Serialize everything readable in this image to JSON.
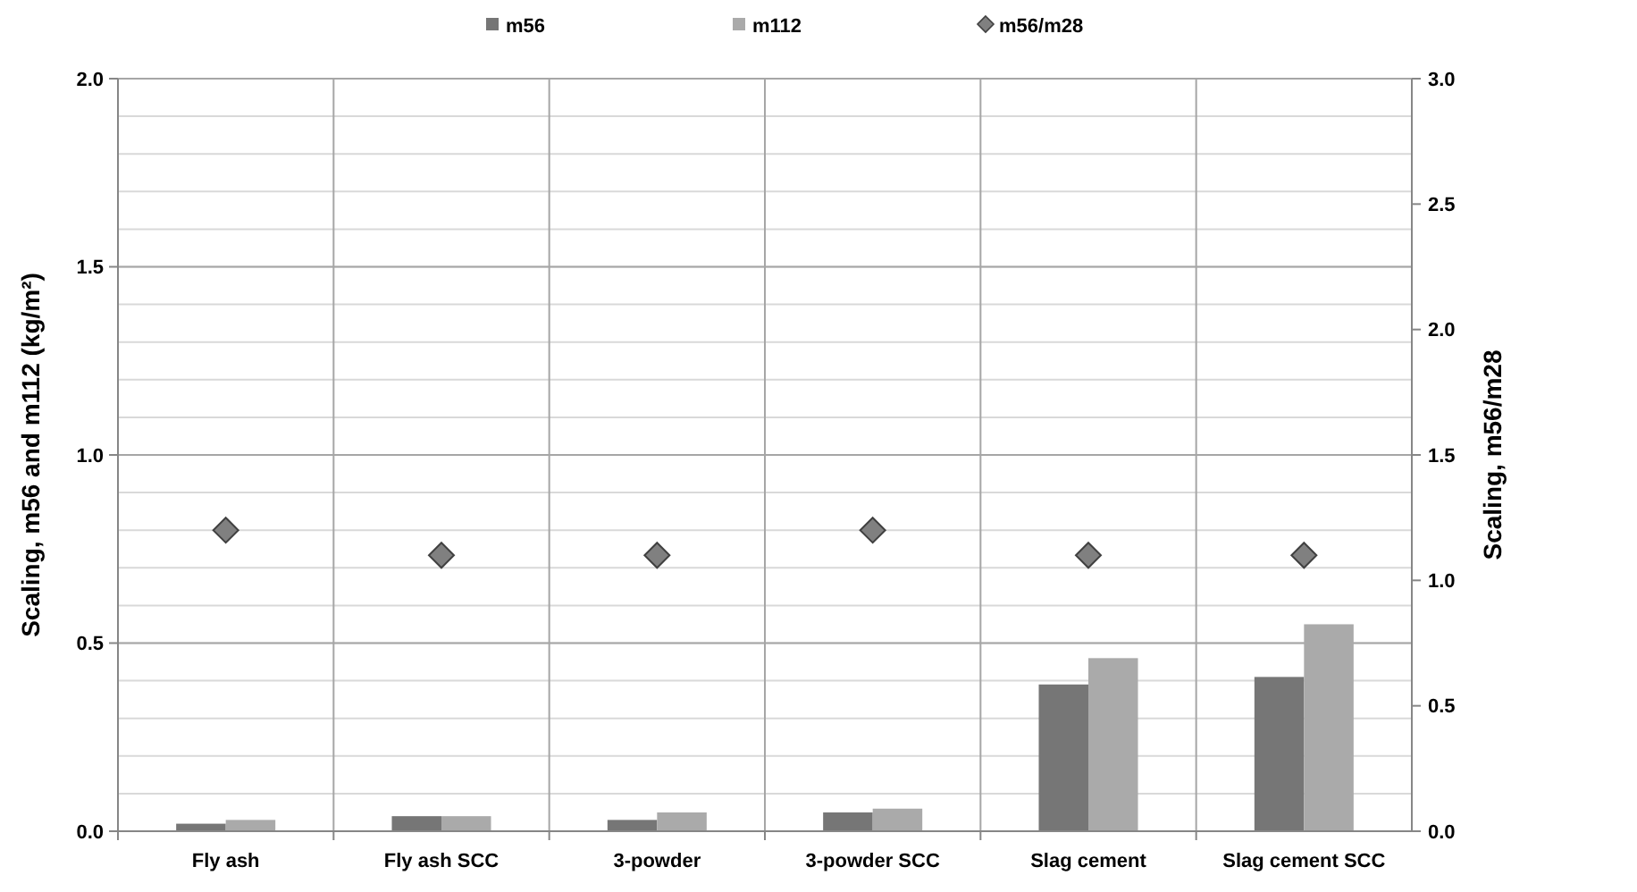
{
  "chart_data": {
    "type": "bar",
    "categories": [
      "Fly ash",
      "Fly ash SCC",
      "3-powder",
      "3-powder SCC",
      "Slag cement",
      "Slag cement SCC"
    ],
    "series": [
      {
        "name": "m56",
        "color": "#767676",
        "values": [
          0.02,
          0.04,
          0.03,
          0.05,
          0.39,
          0.41
        ]
      },
      {
        "name": "m112",
        "color": "#aaaaaa",
        "values": [
          0.03,
          0.04,
          0.05,
          0.06,
          0.46,
          0.55
        ]
      },
      {
        "name": "m56/m28",
        "type": "scatter",
        "axis": "y2",
        "color": "#808080",
        "values": [
          1.2,
          1.1,
          1.1,
          1.2,
          1.1,
          1.1
        ]
      }
    ],
    "ylabel": "Scaling, m56 and m112 (kg/m²)",
    "y2label": "Scaling, m56/m28",
    "ylim": [
      0,
      2
    ],
    "yticks": [
      {
        "value": 0,
        "label": "0.0"
      },
      {
        "value": 0.5,
        "label": "0.5"
      },
      {
        "value": 1,
        "label": "1.0"
      },
      {
        "value": 1.5,
        "label": "1.5"
      },
      {
        "value": 2,
        "label": "2.0"
      }
    ],
    "y2lim": [
      0,
      3
    ],
    "y2ticks": [
      {
        "value": 0,
        "label": "0.0"
      },
      {
        "value": 0.5,
        "label": "0.5"
      },
      {
        "value": 1,
        "label": "1.0"
      },
      {
        "value": 1.5,
        "label": "1.5"
      },
      {
        "value": 2,
        "label": "2.0"
      },
      {
        "value": 2.5,
        "label": "2.5"
      },
      {
        "value": 3,
        "label": "3.0"
      }
    ],
    "grid": true,
    "legend": "top",
    "marker": "diamond"
  }
}
